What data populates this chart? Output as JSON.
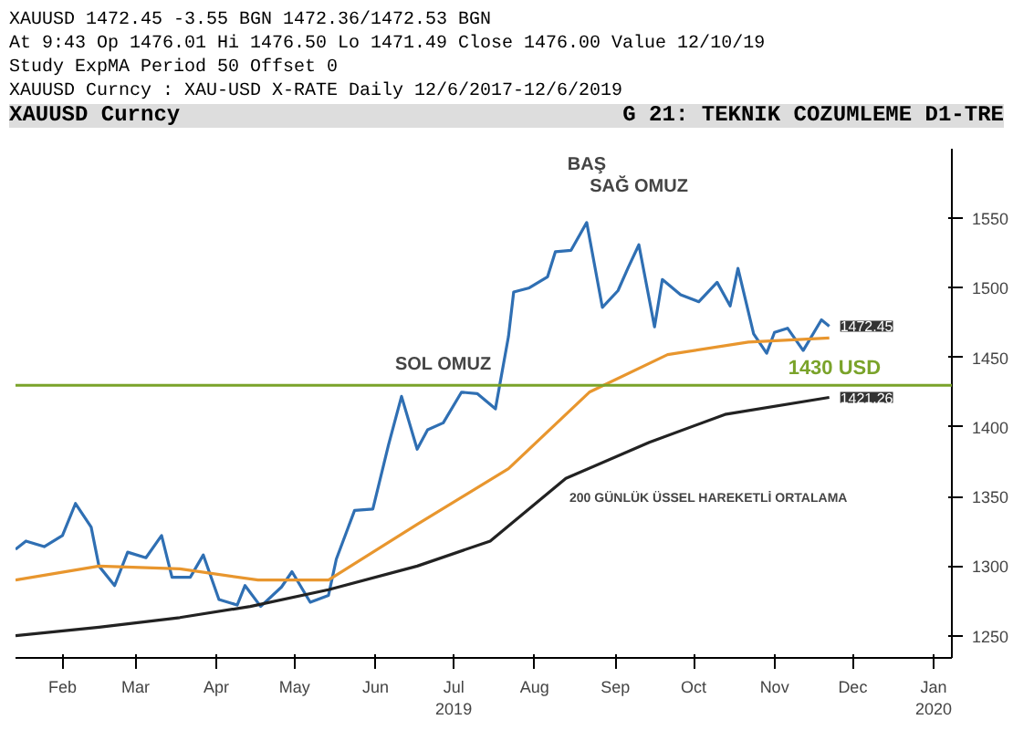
{
  "chart_data": {
    "type": "line",
    "title": "XAUUSD Curncy",
    "subtitle": "G 21: TEKNIK COZUMLEME D1-TRE",
    "xlim": [
      "2019-01-28",
      "2020-01-22"
    ],
    "ylim": [
      1234,
      1600
    ],
    "xticks": [
      {
        "value": "2019-02-15",
        "label": "Feb"
      },
      {
        "value": "2019-03-15",
        "label": "Mar"
      },
      {
        "value": "2019-04-15",
        "label": "Apr"
      },
      {
        "value": "2019-05-15",
        "label": "May"
      },
      {
        "value": "2019-06-15",
        "label": "Jun"
      },
      {
        "value": "2019-07-15",
        "label": "Jul\n2019"
      },
      {
        "value": "2019-08-15",
        "label": "Aug"
      },
      {
        "value": "2019-09-15",
        "label": "Sep"
      },
      {
        "value": "2019-10-15",
        "label": "Oct"
      },
      {
        "value": "2019-11-15",
        "label": "Nov"
      },
      {
        "value": "2019-12-15",
        "label": "Dec"
      },
      {
        "value": "2020-01-15",
        "label": "Jan\n2020"
      }
    ],
    "yticks": [
      1250,
      1300,
      1350,
      1400,
      1450,
      1500,
      1550
    ],
    "grid": false,
    "line_style": "solid",
    "marker": "none",
    "series": [
      {
        "color": "#2f6fb3",
        "x": [
          "2019-01-28",
          "2019-02-01",
          "2019-02-08",
          "2019-02-15",
          "2019-02-20",
          "2019-02-26",
          "2019-03-01",
          "2019-03-07",
          "2019-03-12",
          "2019-03-19",
          "2019-03-25",
          "2019-03-29",
          "2019-04-05",
          "2019-04-10",
          "2019-04-16",
          "2019-04-23",
          "2019-04-26",
          "2019-05-02",
          "2019-05-10",
          "2019-05-14",
          "2019-05-21",
          "2019-05-28",
          "2019-05-31",
          "2019-06-04",
          "2019-06-07",
          "2019-06-14",
          "2019-06-20",
          "2019-06-25",
          "2019-07-01",
          "2019-07-05",
          "2019-07-11",
          "2019-07-18",
          "2019-07-24",
          "2019-07-31",
          "2019-08-05",
          "2019-08-07",
          "2019-08-13",
          "2019-08-20",
          "2019-08-23",
          "2019-08-29",
          "2019-09-04",
          "2019-09-10",
          "2019-09-16",
          "2019-09-20",
          "2019-09-24",
          "2019-09-30",
          "2019-10-03",
          "2019-10-10",
          "2019-10-17",
          "2019-10-24",
          "2019-10-29",
          "2019-11-01",
          "2019-11-07",
          "2019-11-12",
          "2019-11-15",
          "2019-11-20",
          "2019-11-26",
          "2019-12-03",
          "2019-12-06"
        ],
        "values": [
          1312,
          1318,
          1314,
          1322,
          1345,
          1328,
          1300,
          1286,
          1310,
          1306,
          1322,
          1292,
          1292,
          1308,
          1276,
          1272,
          1286,
          1271,
          1285,
          1296,
          1274,
          1279,
          1305,
          1325,
          1340,
          1341,
          1387,
          1422,
          1384,
          1398,
          1403,
          1425,
          1424,
          1413,
          1465,
          1497,
          1500,
          1508,
          1526,
          1527,
          1547,
          1486,
          1498,
          1515,
          1531,
          1472,
          1506,
          1495,
          1490,
          1504,
          1487,
          1514,
          1467,
          1453,
          1468,
          1471,
          1455,
          1477,
          1472.45
        ]
      },
      {
        "color": "#e8962e",
        "x": [
          "2019-01-28",
          "2019-03-01",
          "2019-04-01",
          "2019-05-01",
          "2019-05-28",
          "2019-07-01",
          "2019-08-05",
          "2019-09-05",
          "2019-10-05",
          "2019-11-05",
          "2019-12-06"
        ],
        "values": [
          1290,
          1300,
          1298,
          1290,
          1290,
          1330,
          1370,
          1425,
          1452,
          1461,
          1464
        ]
      },
      {
        "color": "#222222",
        "x": [
          "2019-01-28",
          "2019-03-01",
          "2019-04-01",
          "2019-04-28",
          "2019-05-28",
          "2019-07-01",
          "2019-07-29",
          "2019-08-27",
          "2019-09-28",
          "2019-10-27",
          "2019-12-06"
        ],
        "values": [
          1250,
          1256,
          1263,
          1271,
          1283,
          1300,
          1318,
          1363,
          1389,
          1409,
          1421.26
        ]
      }
    ],
    "ref_lines": [
      {
        "axis": "y",
        "value": 1430,
        "label": "1430 USD",
        "color": "#7aa32a"
      }
    ],
    "annotations": [
      "XAUUSD 1472.45 -3.55   BGN 1472.36/1472.53 BGN",
      "At 9:43  Op 1476.01  Hi 1476.50  Lo 1471.49  Close 1476.00  Value 12/10/19",
      "Study ExpMA  Period 50  Offset 0",
      "XAUUSD Curncy : XAU-USD X-RATE   Daily 12/6/2017-12/6/2019",
      {
        "text": "SOL OMUZ",
        "x": "2019-07-11",
        "y": 1403
      },
      {
        "text": "BAŞ",
        "x": "2019-09-04",
        "y": 1547
      },
      {
        "text": "SAĞ OMUZ",
        "x": "2019-09-24",
        "y": 1531
      },
      {
        "text": "200 GÜNLÜK ÜSSEL HAREKETLİ ORTALAMA",
        "x": "2019-08-27",
        "y": 1363
      },
      {
        "text": "1472.45",
        "x": "2019-12-06",
        "y": 1472.45
      },
      {
        "text": "1421.26",
        "x": "2019-12-06",
        "y": 1421.26
      }
    ]
  }
}
